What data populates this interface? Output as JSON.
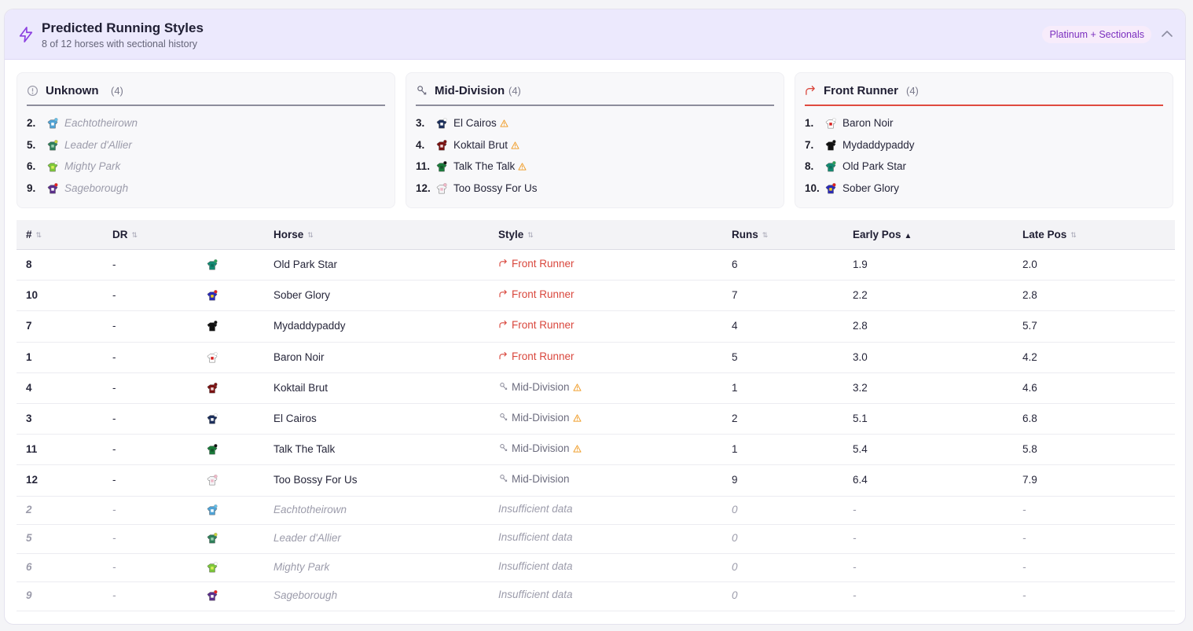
{
  "header": {
    "title": "Predicted Running Styles",
    "subtitle": "8 of 12 horses with sectional history",
    "badge": "Platinum + Sectionals"
  },
  "colors": {
    "accent": "#7b2fbf",
    "front_runner": "#d9473d",
    "header_bg": "#ece9fd"
  },
  "groups": [
    {
      "name": "Unknown",
      "count": "(4)",
      "icon": "info-icon",
      "items": [
        {
          "num": "2.",
          "name": "Eachtotheirown",
          "silk": [
            "#4fa3d6",
            "#ffffff",
            "#66bfe8"
          ],
          "muted": true,
          "warn": false
        },
        {
          "num": "5.",
          "name": "Leader d'Allier",
          "silk": [
            "#2f7f5a",
            "#9ad0b0",
            "#c8d23a"
          ],
          "muted": true,
          "warn": false
        },
        {
          "num": "6.",
          "name": "Mighty Park",
          "silk": [
            "#7cc63a",
            "#d8f055",
            "#ffffff"
          ],
          "muted": true,
          "warn": false
        },
        {
          "num": "9.",
          "name": "Sageborough",
          "silk": [
            "#5b2e8c",
            "#ffffff",
            "#e82020"
          ],
          "muted": true,
          "warn": false
        }
      ]
    },
    {
      "name": "Mid-Division",
      "count": "(4)",
      "icon": "mid-division-icon",
      "items": [
        {
          "num": "3.",
          "name": "El Cairos",
          "silk": [
            "#1c2f5c",
            "#ffffff",
            "#ffffff"
          ],
          "muted": false,
          "warn": true
        },
        {
          "num": "4.",
          "name": "Koktail Brut",
          "silk": [
            "#7a1111",
            "#f0d6d6",
            "#7a1111"
          ],
          "muted": false,
          "warn": true
        },
        {
          "num": "11.",
          "name": "Talk The Talk",
          "silk": [
            "#1a7a3a",
            "#14552a",
            "#111111"
          ],
          "muted": false,
          "warn": true
        },
        {
          "num": "12.",
          "name": "Too Bossy For Us",
          "silk": [
            "#f4f4f6",
            "#f0b8c8",
            "#f0b8c8"
          ],
          "muted": false,
          "warn": false
        }
      ]
    },
    {
      "name": "Front Runner",
      "count": "(4)",
      "icon": "front-runner-icon",
      "items": [
        {
          "num": "1.",
          "name": "Baron Noir",
          "silk": [
            "#ffffff",
            "#d62020",
            "#ffffff"
          ],
          "muted": false,
          "warn": false
        },
        {
          "num": "7.",
          "name": "Mydaddypaddy",
          "silk": [
            "#111111",
            "#111111",
            "#111111"
          ],
          "muted": false,
          "warn": false
        },
        {
          "num": "8.",
          "name": "Old Park Star",
          "silk": [
            "#138a72",
            "#0f6e5b",
            "#2ca05a"
          ],
          "muted": false,
          "warn": false
        },
        {
          "num": "10.",
          "name": "Sober Glory",
          "silk": [
            "#2a2ab8",
            "#f2d21a",
            "#e02020"
          ],
          "muted": false,
          "warn": false
        }
      ]
    }
  ],
  "table": {
    "columns": [
      "#",
      "DR",
      "Horse",
      "Style",
      "Runs",
      "Early Pos",
      "Late Pos"
    ],
    "rows": [
      {
        "num": "8",
        "dr": "-",
        "horse": "Old Park Star",
        "style": "Front Runner",
        "style_type": "front",
        "warn": false,
        "runs": "6",
        "early": "1.9",
        "late": "2.0",
        "muted": false,
        "silk": [
          "#138a72",
          "#0f6e5b",
          "#2ca05a"
        ]
      },
      {
        "num": "10",
        "dr": "-",
        "horse": "Sober Glory",
        "style": "Front Runner",
        "style_type": "front",
        "warn": false,
        "runs": "7",
        "early": "2.2",
        "late": "2.8",
        "muted": false,
        "silk": [
          "#2a2ab8",
          "#f2d21a",
          "#e02020"
        ]
      },
      {
        "num": "7",
        "dr": "-",
        "horse": "Mydaddypaddy",
        "style": "Front Runner",
        "style_type": "front",
        "warn": false,
        "runs": "4",
        "early": "2.8",
        "late": "5.7",
        "muted": false,
        "silk": [
          "#111111",
          "#111111",
          "#111111"
        ]
      },
      {
        "num": "1",
        "dr": "-",
        "horse": "Baron Noir",
        "style": "Front Runner",
        "style_type": "front",
        "warn": false,
        "runs": "5",
        "early": "3.0",
        "late": "4.2",
        "muted": false,
        "silk": [
          "#ffffff",
          "#d62020",
          "#ffffff"
        ]
      },
      {
        "num": "4",
        "dr": "-",
        "horse": "Koktail Brut",
        "style": "Mid-Division",
        "style_type": "mid",
        "warn": true,
        "runs": "1",
        "early": "3.2",
        "late": "4.6",
        "muted": false,
        "silk": [
          "#7a1111",
          "#f0d6d6",
          "#7a1111"
        ]
      },
      {
        "num": "3",
        "dr": "-",
        "horse": "El Cairos",
        "style": "Mid-Division",
        "style_type": "mid",
        "warn": true,
        "runs": "2",
        "early": "5.1",
        "late": "6.8",
        "muted": false,
        "silk": [
          "#1c2f5c",
          "#ffffff",
          "#ffffff"
        ]
      },
      {
        "num": "11",
        "dr": "-",
        "horse": "Talk The Talk",
        "style": "Mid-Division",
        "style_type": "mid",
        "warn": true,
        "runs": "1",
        "early": "5.4",
        "late": "5.8",
        "muted": false,
        "silk": [
          "#1a7a3a",
          "#14552a",
          "#111111"
        ]
      },
      {
        "num": "12",
        "dr": "-",
        "horse": "Too Bossy For Us",
        "style": "Mid-Division",
        "style_type": "mid",
        "warn": false,
        "runs": "9",
        "early": "6.4",
        "late": "7.9",
        "muted": false,
        "silk": [
          "#f4f4f6",
          "#f0b8c8",
          "#f0b8c8"
        ]
      },
      {
        "num": "2",
        "dr": "-",
        "horse": "Eachtotheirown",
        "style": "Insufficient data",
        "style_type": "none",
        "warn": false,
        "runs": "0",
        "early": "-",
        "late": "-",
        "muted": true,
        "silk": [
          "#4fa3d6",
          "#ffffff",
          "#66bfe8"
        ]
      },
      {
        "num": "5",
        "dr": "-",
        "horse": "Leader d'Allier",
        "style": "Insufficient data",
        "style_type": "none",
        "warn": false,
        "runs": "0",
        "early": "-",
        "late": "-",
        "muted": true,
        "silk": [
          "#2f7f5a",
          "#9ad0b0",
          "#c8d23a"
        ]
      },
      {
        "num": "6",
        "dr": "-",
        "horse": "Mighty Park",
        "style": "Insufficient data",
        "style_type": "none",
        "warn": false,
        "runs": "0",
        "early": "-",
        "late": "-",
        "muted": true,
        "silk": [
          "#7cc63a",
          "#d8f055",
          "#ffffff"
        ]
      },
      {
        "num": "9",
        "dr": "-",
        "horse": "Sageborough",
        "style": "Insufficient data",
        "style_type": "none",
        "warn": false,
        "runs": "0",
        "early": "-",
        "late": "-",
        "muted": true,
        "silk": [
          "#5b2e8c",
          "#ffffff",
          "#e82020"
        ]
      }
    ],
    "sort": {
      "column": "Early Pos",
      "direction": "asc"
    }
  }
}
